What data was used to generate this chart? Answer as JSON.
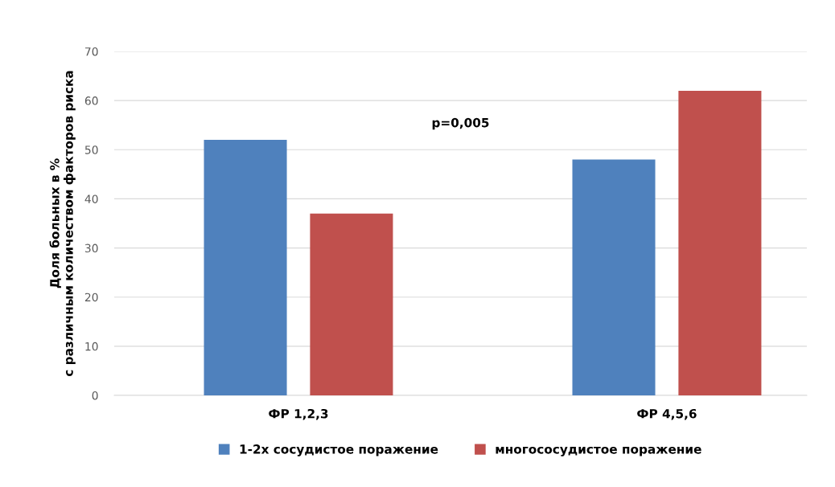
{
  "chart_data": {
    "type": "bar",
    "ylabel": "Доля больных в %\nс различным количеством факторов риска",
    "categories": [
      "ФР 1,2,3",
      "ФР 4,5,6"
    ],
    "series": [
      {
        "name": "1-2х сосудистое поражение",
        "color": "#4f81bd",
        "values": [
          52,
          48
        ]
      },
      {
        "name": "многососудистое поражение",
        "color": "#c0504d",
        "values": [
          37,
          62
        ]
      }
    ],
    "ylim": [
      0,
      70
    ],
    "yticks": [
      0,
      10,
      20,
      30,
      40,
      50,
      60,
      70
    ],
    "grid": "y",
    "legend": "bottom",
    "annotations": [
      "p=0,005"
    ]
  }
}
